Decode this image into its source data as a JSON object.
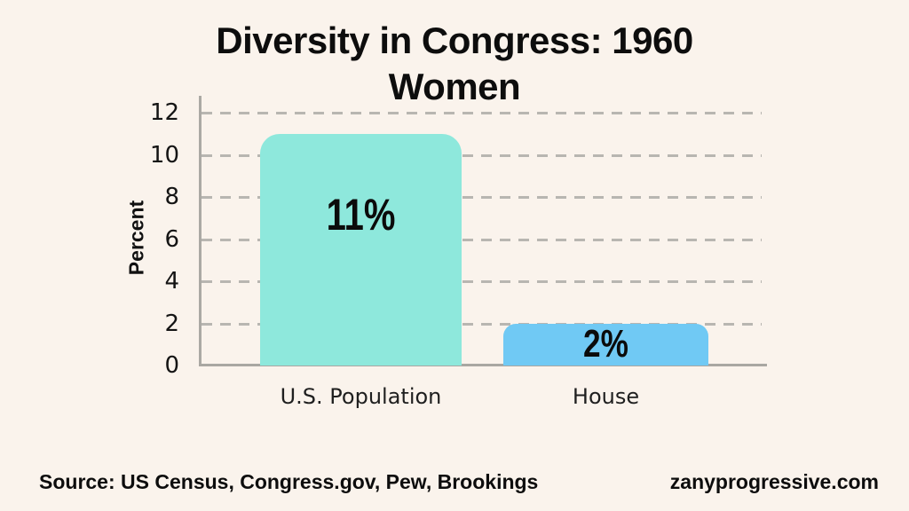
{
  "page": {
    "background_color": "#FAF3EC",
    "text_color": "#0d0d0d"
  },
  "title": {
    "line1": "Diversity in Congress: 1960",
    "line2": "Women"
  },
  "chart_data": {
    "type": "bar",
    "title": "Diversity in Congress: 1960 Women",
    "categories": [
      "U.S. Population",
      "House"
    ],
    "values": [
      11,
      2
    ],
    "value_labels": [
      "11%",
      "2%"
    ],
    "bar_colors": [
      "#8EE8DC",
      "#70C9F4"
    ],
    "xlabel": "",
    "ylabel": "Percent",
    "ylim": [
      0,
      12
    ],
    "yticks": [
      0,
      2,
      4,
      6,
      8,
      10,
      12
    ],
    "grid": "dashed horizontal gridlines at each y tick",
    "legend": "none",
    "grid_color": "#b8b6b1",
    "axis_color": "#aba9a4"
  },
  "footer": {
    "source": "Source: US Census, Congress.gov, Pew, Brookings",
    "site": "zanyprogressive.com"
  }
}
